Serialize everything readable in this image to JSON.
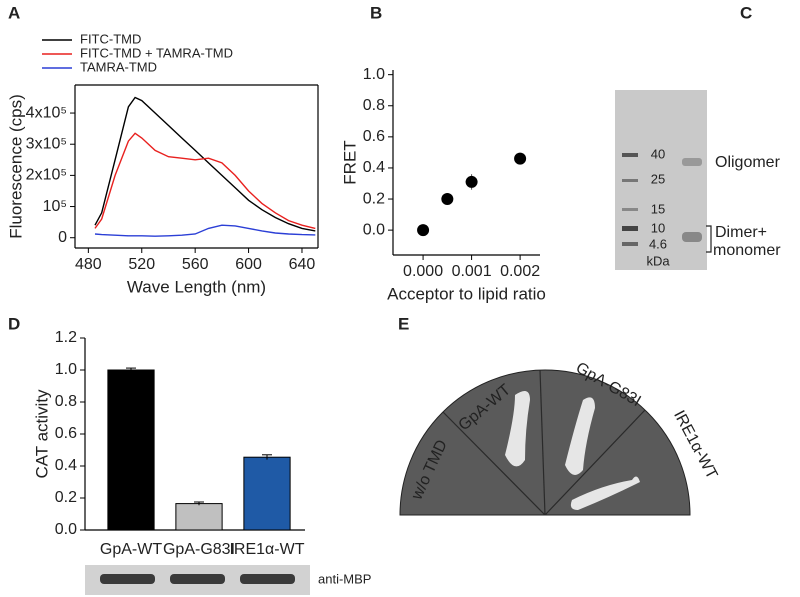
{
  "chart_data": [
    {
      "panel": "A",
      "type": "line",
      "xlabel": "Wave Length (nm)",
      "ylabel": "Fluorescence (cps)",
      "x": [
        485,
        490,
        500,
        510,
        515,
        520,
        530,
        540,
        550,
        560,
        570,
        580,
        590,
        600,
        610,
        620,
        630,
        640,
        650
      ],
      "series": [
        {
          "name": "FITC-TMD",
          "color": "#000000",
          "values": [
            40000,
            80000,
            250000,
            420000,
            450000,
            440000,
            400000,
            360000,
            320000,
            280000,
            240000,
            200000,
            160000,
            120000,
            90000,
            65000,
            45000,
            30000,
            22000
          ]
        },
        {
          "name": "FITC-TMD + TAMRA-TMD",
          "color": "#e8211f",
          "values": [
            30000,
            60000,
            200000,
            310000,
            335000,
            320000,
            280000,
            260000,
            255000,
            250000,
            255000,
            240000,
            200000,
            150000,
            110000,
            80000,
            55000,
            40000,
            30000
          ]
        },
        {
          "name": "TAMRA-TMD",
          "color": "#2b3fd6",
          "values": [
            12000,
            10000,
            8000,
            6000,
            6000,
            6000,
            5000,
            6000,
            8000,
            12000,
            30000,
            40000,
            38000,
            30000,
            22000,
            15000,
            12000,
            10000,
            9000
          ]
        }
      ],
      "xlim": [
        470,
        652
      ],
      "xticks": [
        480,
        520,
        560,
        600,
        640
      ],
      "ylim": [
        -33000,
        490000
      ],
      "yticks": [
        0,
        {
          "value": 100000,
          "label": "10⁵"
        },
        {
          "value": 200000,
          "label": "2x10⁵"
        },
        {
          "value": 300000,
          "label": "3x10⁵"
        },
        {
          "value": 400000,
          "label": "4x10⁵"
        }
      ],
      "legend": "upper left"
    },
    {
      "panel": "B",
      "type": "scatter",
      "xlabel": "Acceptor to lipid ratio",
      "ylabel": "FRET",
      "x": [
        0,
        0.0005,
        0.001,
        0.002
      ],
      "values": [
        0,
        0.2,
        0.31,
        0.46
      ],
      "errors": [
        0.01,
        0.01,
        0.05,
        0.01
      ],
      "color": "#000000",
      "xlim": [
        -0.00062,
        0.00241
      ],
      "xticks": [
        {
          "value": 0,
          "label": "0.000"
        },
        {
          "value": 0.001,
          "label": "0.001"
        },
        {
          "value": 0.002,
          "label": "0.002"
        }
      ],
      "ylim": [
        -0.16,
        1.03
      ],
      "yticks": [
        {
          "value": 0,
          "label": "0.0"
        },
        {
          "value": 0.2,
          "label": "0.2"
        },
        {
          "value": 0.4,
          "label": "0.4"
        },
        {
          "value": 0.6,
          "label": "0.6"
        },
        {
          "value": 0.8,
          "label": "0.8"
        },
        {
          "value": 1,
          "label": "1.0"
        }
      ]
    },
    {
      "panel": "D",
      "type": "bar",
      "ylabel": "CAT activity",
      "categories": [
        "GpA-WT",
        "GpA-G83I",
        "IRE1α-WT"
      ],
      "values": [
        1.0,
        0.165,
        0.455
      ],
      "errors": [
        0.012,
        0.01,
        0.015
      ],
      "colors": [
        "#000000",
        "#c0c0c0",
        "#1f5aa6"
      ],
      "ylim": [
        0,
        1.2
      ],
      "yticks": [
        {
          "value": 0,
          "label": "0.0"
        },
        {
          "value": 0.2,
          "label": "0.2"
        },
        {
          "value": 0.4,
          "label": "0.4"
        },
        {
          "value": 0.6,
          "label": "0.6"
        },
        {
          "value": 0.8,
          "label": "0.8"
        },
        {
          "value": 1,
          "label": "1.0"
        },
        {
          "value": 1.2,
          "label": "1.2"
        }
      ]
    }
  ],
  "gel": {
    "panel": "C",
    "markers": [
      "40",
      "25",
      "15",
      "10",
      "4.6"
    ],
    "unit": "kDa",
    "bands": [
      "Oligomer",
      "Dimer+",
      "monomer"
    ]
  },
  "blot": {
    "label": "anti-MBP"
  },
  "plate": {
    "panel": "E",
    "sectors": [
      "w/o TMD",
      "GpA-WT",
      "GpA-G83I",
      "IRE1α-WT"
    ]
  }
}
